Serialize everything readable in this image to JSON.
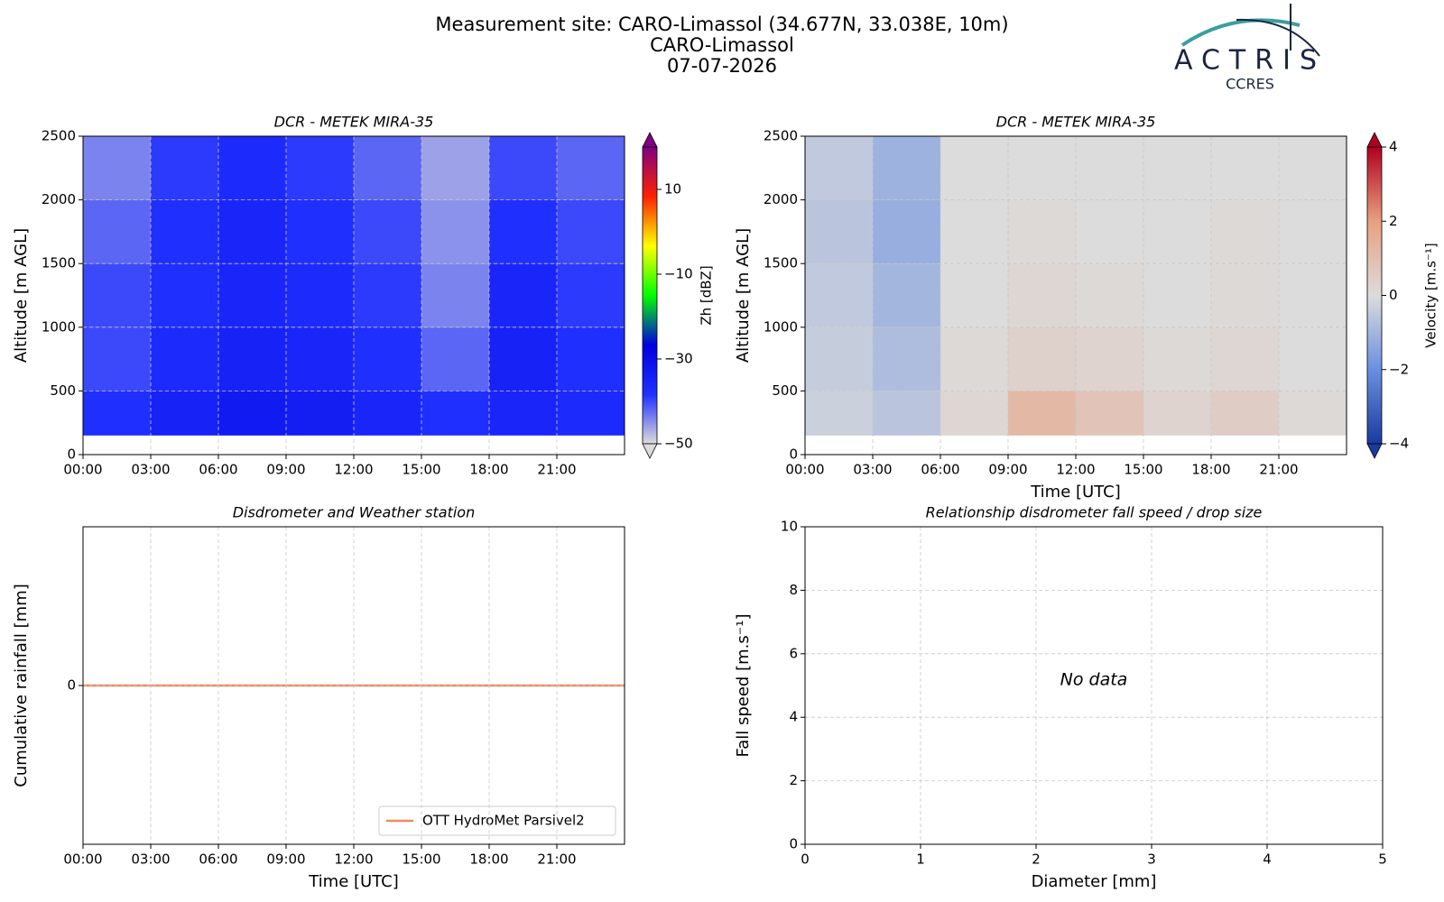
{
  "header": {
    "title": [
      "Measurement site: CARO-Limassol (34.677N, 33.038E, 10m)",
      "CARO-Limassol",
      "07-07-2026"
    ],
    "logo": {
      "name": "ACTRIS",
      "subtitle": "CCRES"
    }
  },
  "chart_data": [
    {
      "type": "heatmap",
      "title": "DCR - METEK MIRA-35",
      "ylabel": "Altitude [m AGL]",
      "colorbar_label": "Zh [dBZ]",
      "xlim": [
        0,
        24
      ],
      "xticks": [
        {
          "value": 0,
          "label": "00:00"
        },
        {
          "value": 3,
          "label": "03:00"
        },
        {
          "value": 6,
          "label": "06:00"
        },
        {
          "value": 9,
          "label": "09:00"
        },
        {
          "value": 12,
          "label": "12:00"
        },
        {
          "value": 15,
          "label": "15:00"
        },
        {
          "value": 18,
          "label": "18:00"
        },
        {
          "value": 21,
          "label": "21:00"
        }
      ],
      "ylim": [
        0,
        2500
      ],
      "yticks": [
        0,
        500,
        1000,
        1500,
        2000,
        2500
      ],
      "grid": true,
      "x": [
        0,
        3,
        6,
        9,
        12,
        15,
        18,
        21,
        24
      ],
      "y": [
        150,
        500,
        1000,
        1500,
        2000,
        2500
      ],
      "z": [
        [
          -38,
          -35,
          -33,
          -34,
          -36,
          -38,
          -36,
          -37
        ],
        [
          -40,
          -37,
          -35,
          -36,
          -38,
          -42,
          -35,
          -38
        ],
        [
          -40,
          -38,
          -36,
          -37,
          -39,
          -44,
          -36,
          -39
        ],
        [
          -42,
          -38,
          -36,
          -38,
          -40,
          -45,
          -38,
          -40
        ],
        [
          -44,
          -39,
          -37,
          -39,
          -42,
          -46,
          -40,
          -42
        ]
      ],
      "clim": [
        -50,
        20
      ],
      "colorscale": [
        "#dcdcdc",
        "#2030ff",
        "#0000e0",
        "#00ff00",
        "#ffff00",
        "#ff2000",
        "#800080"
      ],
      "cticks": [
        {
          "value": -50,
          "label": "−50"
        },
        {
          "value": -30,
          "label": "−30"
        },
        {
          "value": -10,
          "label": "−10"
        },
        10
      ]
    },
    {
      "type": "heatmap",
      "title": "DCR - METEK MIRA-35",
      "xlabel": "Time [UTC]",
      "ylabel": "Altitude [m AGL]",
      "colorbar_label": "Velocity [m.s⁻¹]",
      "xlim": [
        0,
        24
      ],
      "xticks": [
        {
          "value": 0,
          "label": "00:00"
        },
        {
          "value": 3,
          "label": "03:00"
        },
        {
          "value": 6,
          "label": "06:00"
        },
        {
          "value": 9,
          "label": "09:00"
        },
        {
          "value": 12,
          "label": "12:00"
        },
        {
          "value": 15,
          "label": "15:00"
        },
        {
          "value": 18,
          "label": "18:00"
        },
        {
          "value": 21,
          "label": "21:00"
        }
      ],
      "ylim": [
        0,
        2500
      ],
      "yticks": [
        0,
        500,
        1000,
        1500,
        2000,
        2500
      ],
      "grid": true,
      "x": [
        0,
        3,
        6,
        9,
        12,
        15,
        18,
        21,
        24
      ],
      "y": [
        150,
        500,
        1000,
        1500,
        2000,
        2500
      ],
      "z": [
        [
          -0.3,
          -0.6,
          0.2,
          1.2,
          0.8,
          0.3,
          0.5,
          0.1
        ],
        [
          -0.4,
          -0.8,
          0.1,
          0.4,
          0.3,
          0.1,
          0.2,
          0
        ],
        [
          -0.5,
          -1,
          0,
          0.2,
          0.1,
          0,
          0.1,
          0
        ],
        [
          -0.6,
          -1.2,
          0,
          0.1,
          0,
          0,
          0.1,
          0
        ],
        [
          -0.5,
          -1.1,
          0,
          0,
          0,
          0,
          0,
          0
        ]
      ],
      "clim": [
        -4,
        4
      ],
      "colorscale": [
        "#1a3aa0",
        "#6a8fe0",
        "#dcdcdc",
        "#e8a080",
        "#b00020"
      ],
      "cticks": [
        {
          "value": -4,
          "label": "−4"
        },
        {
          "value": -2,
          "label": "−2"
        },
        0,
        2,
        4
      ]
    },
    {
      "type": "line",
      "title": "Disdrometer and Weather station",
      "xlabel": "Time [UTC]",
      "ylabel": "Cumulative rainfall [mm]",
      "xlim": [
        0,
        24
      ],
      "xticks": [
        {
          "value": 0,
          "label": "00:00"
        },
        {
          "value": 3,
          "label": "03:00"
        },
        {
          "value": 6,
          "label": "06:00"
        },
        {
          "value": 9,
          "label": "09:00"
        },
        {
          "value": 12,
          "label": "12:00"
        },
        {
          "value": 15,
          "label": "15:00"
        },
        {
          "value": 18,
          "label": "18:00"
        },
        {
          "value": 21,
          "label": "21:00"
        }
      ],
      "ylim": [
        -1,
        1
      ],
      "yticks": [
        0
      ],
      "grid": true,
      "legend": "lower-right",
      "x": [
        0,
        24
      ],
      "series": [
        {
          "name": "OTT HydroMet Parsivel2",
          "color": "#f08a5d",
          "values": [
            0,
            0
          ]
        }
      ]
    },
    {
      "type": "scatter",
      "title": "Relationship disdrometer fall speed / drop size",
      "xlabel": "Diameter [mm]",
      "ylabel": "Fall speed [m.s⁻¹]",
      "xlim": [
        0,
        5
      ],
      "xticks": [
        0,
        1,
        2,
        3,
        4,
        5
      ],
      "ylim": [
        0,
        10
      ],
      "yticks": [
        0,
        2,
        4,
        6,
        8,
        10
      ],
      "grid": true,
      "annotation": "No data"
    }
  ]
}
